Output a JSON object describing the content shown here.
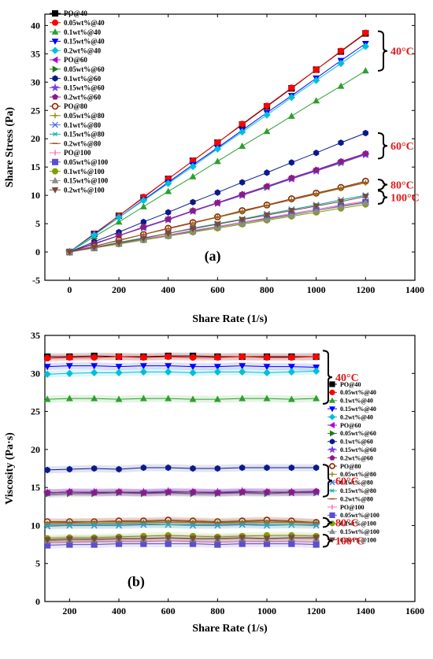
{
  "colors": {
    "PO@40": "#000000",
    "0.05wt%@40": "#ff0000",
    "0.1wt%@40": "#2ca02c",
    "0.15wt%@40": "#0000ff",
    "0.2wt%@40": "#00bfd8",
    "PO@60": "#b000e0",
    "0.05wt%@60": "#1f7a1f",
    "0.1wt%@60": "#0a1a8c",
    "0.15wt%@60": "#7b3fe4",
    "0.2wt%@60": "#8b1a8b",
    "PO@80": "#8b2500",
    "0.05wt%@80": "#8b8b00",
    "0.1wt%@80": "#4a6fd8",
    "0.15wt%@80": "#20b2aa",
    "0.2wt%@80": "#a0522d",
    "PO@100": "#ff69b4",
    "0.05wt%@100": "#5a4fcf",
    "0.1wt%@100": "#7fa000",
    "0.15wt%@100": "#8c8c8c",
    "0.2wt%@100": "#7a4a3a"
  },
  "chart_data": [
    {
      "type": "line",
      "panel_label": "(a)",
      "xlabel": "Share Rate (1/s)",
      "ylabel": "Share Stress (Pa)",
      "xlim": [
        -100,
        1400
      ],
      "ylim": [
        -5,
        42
      ],
      "xticks": [
        0,
        200,
        400,
        600,
        800,
        1000,
        1200,
        1400
      ],
      "yticks": [
        -5,
        0,
        5,
        10,
        15,
        20,
        25,
        30,
        35,
        40
      ],
      "legend_position": "top-left",
      "x": [
        0,
        100,
        200,
        300,
        400,
        500,
        600,
        700,
        800,
        900,
        1000,
        1100,
        1200
      ],
      "series": [
        {
          "name": "PO@40",
          "marker": "square",
          "values": [
            0,
            3.2,
            6.4,
            9.6,
            12.9,
            16.1,
            19.3,
            22.5,
            25.7,
            28.9,
            32.2,
            35.4,
            38.6
          ]
        },
        {
          "name": "0.05wt%@40",
          "marker": "circle",
          "values": [
            0,
            3.2,
            6.4,
            9.7,
            12.9,
            16.1,
            19.3,
            22.6,
            25.8,
            29.0,
            32.2,
            35.5,
            38.7
          ]
        },
        {
          "name": "0.1wt%@40",
          "marker": "triangle-up",
          "values": [
            0,
            2.7,
            5.3,
            8.0,
            10.7,
            13.3,
            16.0,
            18.7,
            21.3,
            24.0,
            26.7,
            29.3,
            32.0
          ]
        },
        {
          "name": "0.15wt%@40",
          "marker": "triangle-down",
          "values": [
            0,
            3.1,
            6.1,
            9.2,
            12.3,
            15.4,
            18.4,
            21.5,
            24.6,
            27.6,
            30.7,
            33.8,
            36.8
          ]
        },
        {
          "name": "0.2wt%@40",
          "marker": "diamond",
          "values": [
            0,
            3.0,
            6.1,
            9.1,
            12.1,
            15.1,
            18.2,
            21.2,
            24.2,
            27.3,
            30.3,
            33.3,
            36.3
          ]
        },
        {
          "name": "PO@60",
          "marker": "triangle-left",
          "values": [
            0,
            1.4,
            2.9,
            4.3,
            5.8,
            7.2,
            8.7,
            10.1,
            11.6,
            13.0,
            14.4,
            15.9,
            17.3
          ]
        },
        {
          "name": "0.05wt%@60",
          "marker": "triangle-right",
          "values": [
            0,
            1.4,
            2.9,
            4.3,
            5.7,
            7.2,
            8.6,
            10.0,
            11.4,
            12.9,
            14.3,
            15.7,
            17.2
          ]
        },
        {
          "name": "0.1wt%@60",
          "marker": "hexagon",
          "values": [
            0,
            1.8,
            3.5,
            5.3,
            7.0,
            8.8,
            10.5,
            12.3,
            14.0,
            15.8,
            17.5,
            19.3,
            21.0
          ]
        },
        {
          "name": "0.15wt%@60",
          "marker": "star",
          "values": [
            0,
            1.4,
            2.9,
            4.3,
            5.7,
            7.2,
            8.6,
            10.0,
            11.5,
            12.9,
            14.3,
            15.8,
            17.2
          ]
        },
        {
          "name": "0.2wt%@60",
          "marker": "pentagon",
          "values": [
            0,
            1.5,
            2.9,
            4.4,
            5.8,
            7.3,
            8.7,
            10.2,
            11.6,
            13.1,
            14.5,
            16.0,
            17.4
          ]
        },
        {
          "name": "PO@80",
          "marker": "circle-open",
          "values": [
            0,
            1.0,
            2.1,
            3.1,
            4.2,
            5.2,
            6.2,
            7.3,
            8.3,
            9.4,
            10.4,
            11.4,
            12.5
          ]
        },
        {
          "name": "0.05wt%@80",
          "marker": "plus",
          "values": [
            0,
            1.0,
            2.0,
            3.1,
            4.1,
            5.1,
            6.1,
            7.1,
            8.2,
            9.2,
            10.2,
            11.2,
            12.2
          ]
        },
        {
          "name": "0.1wt%@80",
          "marker": "x",
          "values": [
            0,
            0.8,
            1.7,
            2.5,
            3.3,
            4.2,
            5.0,
            5.8,
            6.7,
            7.5,
            8.3,
            9.2,
            10.0
          ]
        },
        {
          "name": "0.15wt%@80",
          "marker": "asterisk",
          "values": [
            0,
            0.8,
            1.7,
            2.5,
            3.3,
            4.2,
            5.0,
            5.8,
            6.7,
            7.5,
            8.3,
            9.2,
            10.0
          ]
        },
        {
          "name": "0.2wt%@80",
          "marker": "dash",
          "values": [
            0,
            1.0,
            2.1,
            3.1,
            4.1,
            5.1,
            6.2,
            7.2,
            8.2,
            9.2,
            10.3,
            11.3,
            12.3
          ]
        },
        {
          "name": "PO@100",
          "marker": "vline",
          "values": [
            0,
            0.8,
            1.5,
            2.3,
            3.0,
            3.8,
            4.5,
            5.3,
            6.0,
            6.8,
            7.5,
            8.3,
            9.0
          ]
        },
        {
          "name": "0.05wt%@100",
          "marker": "square",
          "values": [
            0,
            0.7,
            1.5,
            2.2,
            2.9,
            3.7,
            4.4,
            5.1,
            5.9,
            6.6,
            7.3,
            8.1,
            8.8
          ]
        },
        {
          "name": "0.1wt%@100",
          "marker": "circle",
          "values": [
            0,
            0.7,
            1.4,
            2.1,
            2.8,
            3.5,
            4.2,
            4.9,
            5.6,
            6.3,
            7.0,
            7.7,
            8.4
          ]
        },
        {
          "name": "0.15wt%@100",
          "marker": "triangle-up",
          "values": [
            0,
            0.7,
            1.5,
            2.2,
            2.9,
            3.6,
            4.4,
            5.1,
            5.8,
            6.5,
            7.3,
            8.0,
            8.7
          ]
        },
        {
          "name": "0.2wt%@100",
          "marker": "triangle-down",
          "values": [
            0,
            0.8,
            1.6,
            2.4,
            3.3,
            4.1,
            4.9,
            5.7,
            6.5,
            7.3,
            8.1,
            8.9,
            9.8
          ]
        }
      ],
      "annotations": [
        {
          "text": "40°C",
          "y_range": [
            32,
            39
          ]
        },
        {
          "text": "60°C",
          "y_range": [
            16.5,
            21
          ]
        },
        {
          "text": "80°C",
          "y_range": [
            11,
            12.8
          ]
        },
        {
          "text": "100°C",
          "y_range": [
            8.5,
            10.8
          ]
        }
      ]
    },
    {
      "type": "line",
      "panel_label": "(b)",
      "xlabel": "Share Rate (1/s)",
      "ylabel": "Viscosity (Pa·s)",
      "xlim": [
        100,
        1600
      ],
      "ylim": [
        0,
        35
      ],
      "xticks": [
        200,
        400,
        600,
        800,
        1000,
        1200,
        1400,
        1600
      ],
      "yticks": [
        0,
        5,
        10,
        15,
        20,
        25,
        30,
        35
      ],
      "legend_position": "right",
      "x": [
        110,
        200,
        300,
        400,
        500,
        600,
        700,
        800,
        900,
        1000,
        1100,
        1200
      ],
      "series": [
        {
          "name": "PO@40",
          "values": [
            32.2,
            32.2,
            32.3,
            32.2,
            32.2,
            32.3,
            32.3,
            32.2,
            32.2,
            32.2,
            32.2,
            32.2
          ]
        },
        {
          "name": "0.05wt%@40",
          "values": [
            32.0,
            32.1,
            32.1,
            32.2,
            32.1,
            32.2,
            32.1,
            32.1,
            32.2,
            32.1,
            32.1,
            32.2
          ]
        },
        {
          "name": "0.1wt%@40",
          "values": [
            26.6,
            26.7,
            26.7,
            26.6,
            26.7,
            26.7,
            26.6,
            26.6,
            26.7,
            26.7,
            26.6,
            26.7
          ]
        },
        {
          "name": "0.15wt%@40",
          "values": [
            30.9,
            31.0,
            31.0,
            30.9,
            31.0,
            31.0,
            30.9,
            30.9,
            31.0,
            30.9,
            30.9,
            30.8
          ]
        },
        {
          "name": "0.2wt%@40",
          "values": [
            29.9,
            30.0,
            30.1,
            30.1,
            30.2,
            30.2,
            30.1,
            30.2,
            30.2,
            30.1,
            30.2,
            30.3
          ]
        },
        {
          "name": "PO@60",
          "values": [
            14.3,
            14.4,
            14.4,
            14.4,
            14.3,
            14.4,
            14.4,
            14.3,
            14.4,
            14.4,
            14.3,
            14.4
          ]
        },
        {
          "name": "0.05wt%@60",
          "values": [
            14.1,
            14.2,
            14.2,
            14.3,
            14.2,
            14.3,
            14.2,
            14.2,
            14.3,
            14.2,
            14.3,
            14.3
          ]
        },
        {
          "name": "0.1wt%@60",
          "values": [
            17.3,
            17.4,
            17.5,
            17.4,
            17.6,
            17.6,
            17.5,
            17.5,
            17.6,
            17.6,
            17.6,
            17.6
          ]
        },
        {
          "name": "0.15wt%@60",
          "values": [
            14.3,
            14.4,
            14.4,
            14.4,
            14.4,
            14.5,
            14.4,
            14.4,
            14.5,
            14.4,
            14.4,
            14.4
          ]
        },
        {
          "name": "0.2wt%@60",
          "values": [
            14.3,
            14.4,
            14.3,
            14.4,
            14.3,
            14.4,
            14.4,
            14.3,
            14.4,
            14.4,
            14.4,
            14.5
          ]
        },
        {
          "name": "PO@80",
          "values": [
            10.5,
            10.5,
            10.5,
            10.6,
            10.6,
            10.7,
            10.6,
            10.5,
            10.6,
            10.7,
            10.6,
            10.4
          ]
        },
        {
          "name": "0.05wt%@80",
          "values": [
            10.2,
            10.3,
            10.3,
            10.3,
            10.4,
            10.4,
            10.4,
            10.3,
            10.4,
            10.4,
            10.4,
            10.3
          ]
        },
        {
          "name": "0.1wt%@80",
          "values": [
            9.9,
            10.0,
            10.0,
            10.0,
            10.1,
            10.1,
            10.0,
            10.0,
            10.1,
            10.0,
            10.1,
            10.0
          ]
        },
        {
          "name": "0.15wt%@80",
          "values": [
            10.0,
            10.1,
            10.1,
            10.1,
            10.2,
            10.1,
            10.1,
            10.1,
            10.2,
            10.1,
            10.1,
            10.1
          ]
        },
        {
          "name": "0.2wt%@80",
          "values": [
            10.4,
            10.4,
            10.5,
            10.5,
            10.5,
            10.6,
            10.5,
            10.4,
            10.5,
            10.6,
            10.5,
            10.4
          ]
        },
        {
          "name": "PO@100",
          "values": [
            7.8,
            7.8,
            7.9,
            7.9,
            7.9,
            8.0,
            7.9,
            7.8,
            7.9,
            7.9,
            7.9,
            7.8
          ]
        },
        {
          "name": "0.05wt%@100",
          "values": [
            7.4,
            7.5,
            7.5,
            7.6,
            7.6,
            7.6,
            7.6,
            7.5,
            7.6,
            7.6,
            7.6,
            7.5
          ]
        },
        {
          "name": "0.1wt%@100",
          "values": [
            8.3,
            8.4,
            8.4,
            8.5,
            8.6,
            8.7,
            8.6,
            8.5,
            8.6,
            8.7,
            8.7,
            8.6
          ]
        },
        {
          "name": "0.15wt%@100",
          "values": [
            8.0,
            8.1,
            8.1,
            8.2,
            8.2,
            8.3,
            8.2,
            8.2,
            8.3,
            8.2,
            8.3,
            8.3
          ]
        },
        {
          "name": "0.2wt%@100",
          "values": [
            8.1,
            8.2,
            8.2,
            8.3,
            8.3,
            8.4,
            8.3,
            8.3,
            8.4,
            8.3,
            8.4,
            8.4
          ]
        }
      ],
      "annotations": [
        {
          "text": "40°C",
          "y_range": [
            26,
            33
          ]
        },
        {
          "text": "60°C",
          "y_range": [
            13.8,
            18
          ]
        },
        {
          "text": "80°C",
          "y_range": [
            9.8,
            11
          ]
        },
        {
          "text": "100°C",
          "y_range": [
            7.2,
            8.8
          ]
        }
      ]
    }
  ]
}
